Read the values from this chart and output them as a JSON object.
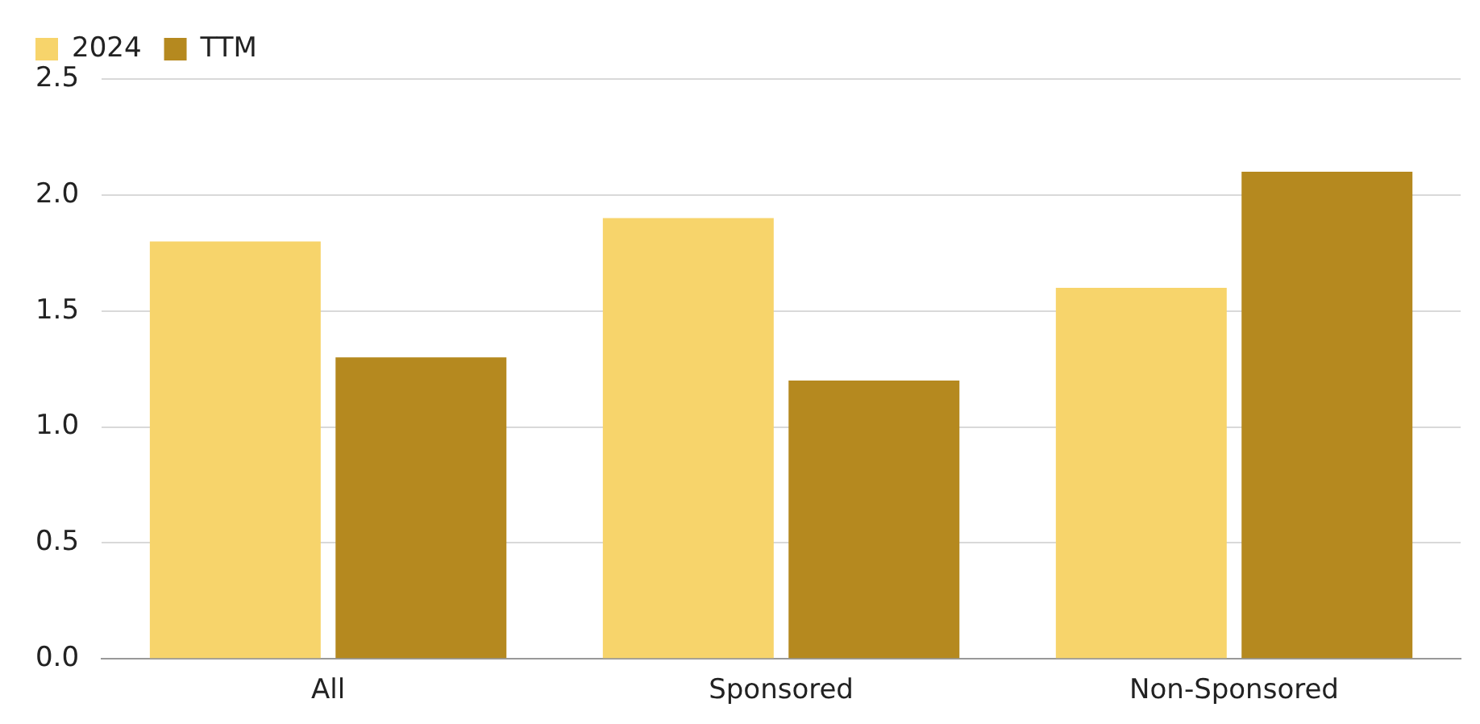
{
  "chart_data": {
    "type": "bar",
    "categories": [
      "All",
      "Sponsored",
      "Non-Sponsored"
    ],
    "series": [
      {
        "name": "2024",
        "color": "#f7d46b",
        "values": [
          1.8,
          1.9,
          1.6
        ]
      },
      {
        "name": "TTM",
        "color": "#b5891f",
        "values": [
          1.3,
          1.2,
          2.1
        ]
      }
    ],
    "ylim": [
      0,
      2.5
    ],
    "yticks": [
      {
        "value": 0,
        "label": "0.0"
      },
      0.5,
      {
        "value": 1,
        "label": "1.0"
      },
      1.5,
      {
        "value": 2,
        "label": "2.0"
      },
      2.5
    ],
    "grid": "y",
    "legend": "top left"
  }
}
